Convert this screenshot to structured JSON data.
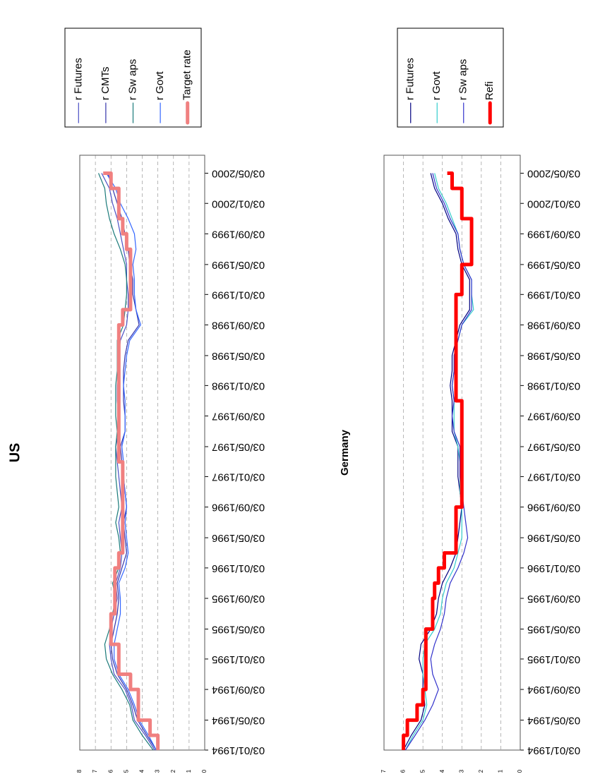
{
  "chart_data": [
    {
      "type": "line",
      "title": "US",
      "x": [
        "03/01/1994",
        "03/03/1994",
        "03/05/1994",
        "03/07/1994",
        "03/09/1994",
        "03/11/1994",
        "03/01/1995",
        "03/03/1995",
        "03/05/1995",
        "03/07/1995",
        "03/09/1995",
        "03/11/1995",
        "03/01/1996",
        "03/03/1996",
        "03/05/1996",
        "03/07/1996",
        "03/09/1996",
        "03/11/1996",
        "03/01/1997",
        "03/03/1997",
        "03/05/1997",
        "03/07/1997",
        "03/09/1997",
        "03/11/1997",
        "03/01/1998",
        "03/03/1998",
        "03/05/1998",
        "03/07/1998",
        "03/09/1998",
        "03/11/1998",
        "03/01/1999",
        "03/03/1999",
        "03/05/1999",
        "03/07/1999",
        "03/09/1999",
        "03/11/1999",
        "03/01/2000",
        "03/03/2000",
        "03/05/2000"
      ],
      "xlim": [
        "03/01/1994",
        "14/07/2000"
      ],
      "xticks": [
        "03/01/1994",
        "03/05/1994",
        "03/09/1994",
        "03/01/1995",
        "03/05/1995",
        "03/09/1995",
        "03/01/1996",
        "03/05/1996",
        "03/09/1996",
        "03/01/1997",
        "03/05/1997",
        "03/09/1997",
        "03/01/1998",
        "03/05/1998",
        "03/09/1998",
        "03/01/1999",
        "03/05/1999",
        "03/09/1999",
        "03/01/2000",
        "03/05/2000"
      ],
      "ylim": [
        0,
        8
      ],
      "yticks": [
        0,
        1,
        2,
        3,
        4,
        5,
        6,
        7,
        8
      ],
      "grid": true,
      "series": [
        {
          "name": "r Futures",
          "color": "#4a4fc4",
          "linewidth": 1.2,
          "values": [
            3.2,
            3.8,
            4.5,
            4.7,
            5.1,
            5.8,
            6.0,
            6.1,
            6.0,
            5.8,
            5.6,
            5.7,
            5.4,
            5.3,
            5.4,
            5.5,
            5.3,
            5.4,
            5.5,
            5.6,
            5.7,
            5.5,
            5.5,
            5.6,
            5.6,
            5.5,
            5.5,
            5.4,
            5.0,
            4.9,
            4.9,
            5.0,
            5.0,
            5.2,
            5.4,
            5.6,
            5.9,
            6.1,
            6.6
          ]
        },
        {
          "name": "r CMTs",
          "color": "#3333aa",
          "linewidth": 1.2,
          "values": [
            3.1,
            3.7,
            4.3,
            4.6,
            5.0,
            5.6,
            5.9,
            6.0,
            5.8,
            5.6,
            5.5,
            5.6,
            5.3,
            5.0,
            5.1,
            5.2,
            5.0,
            5.1,
            5.2,
            5.3,
            5.4,
            5.1,
            5.1,
            5.2,
            5.2,
            5.2,
            5.1,
            4.9,
            4.2,
            4.4,
            4.6,
            4.6,
            4.8,
            4.9,
            5.1,
            5.3,
            5.6,
            5.9,
            6.2
          ]
        },
        {
          "name": "r Sw aps",
          "color": "#1a7a7a",
          "linewidth": 1.2,
          "values": [
            3.3,
            4.0,
            4.6,
            4.8,
            5.3,
            5.9,
            6.3,
            6.4,
            6.1,
            5.9,
            5.7,
            5.9,
            5.5,
            5.4,
            5.5,
            5.7,
            5.5,
            5.6,
            5.7,
            5.7,
            5.7,
            5.6,
            5.7,
            5.7,
            5.7,
            5.6,
            5.6,
            5.6,
            5.2,
            5.1,
            5.0,
            5.0,
            5.1,
            5.4,
            5.8,
            6.1,
            6.3,
            6.4,
            6.8
          ]
        },
        {
          "name": "r Govt",
          "color": "#3366ff",
          "linewidth": 1.2,
          "values": [
            3.1,
            3.6,
            4.2,
            4.5,
            4.9,
            5.5,
            5.8,
            5.8,
            5.6,
            5.4,
            5.4,
            5.5,
            5.1,
            4.9,
            5.0,
            5.1,
            5.0,
            5.1,
            5.2,
            5.2,
            5.3,
            5.1,
            5.1,
            5.1,
            5.2,
            5.1,
            5.0,
            4.8,
            4.1,
            4.4,
            4.5,
            4.5,
            4.6,
            4.4,
            4.5,
            4.9,
            5.4,
            5.7,
            6.3
          ]
        },
        {
          "name": "Target rate",
          "color": "#f08080",
          "linewidth": 5,
          "step": true,
          "values": [
            3.0,
            3.5,
            4.25,
            4.25,
            4.75,
            5.5,
            5.5,
            6.0,
            6.0,
            5.75,
            5.75,
            5.75,
            5.5,
            5.25,
            5.25,
            5.25,
            5.25,
            5.25,
            5.25,
            5.5,
            5.5,
            5.5,
            5.5,
            5.5,
            5.5,
            5.5,
            5.5,
            5.5,
            5.25,
            4.75,
            4.75,
            4.75,
            4.75,
            5.0,
            5.25,
            5.5,
            5.5,
            6.0,
            6.5
          ]
        }
      ]
    },
    {
      "type": "line",
      "title": "Germany",
      "x": [
        "03/01/1994",
        "03/03/1994",
        "03/05/1994",
        "03/07/1994",
        "03/09/1994",
        "03/11/1994",
        "03/01/1995",
        "03/03/1995",
        "03/05/1995",
        "03/07/1995",
        "03/09/1995",
        "03/11/1995",
        "03/01/1996",
        "03/03/1996",
        "03/05/1996",
        "03/07/1996",
        "03/09/1996",
        "03/11/1996",
        "03/01/1997",
        "03/03/1997",
        "03/05/1997",
        "03/07/1997",
        "03/09/1997",
        "03/11/1997",
        "03/01/1998",
        "03/03/1998",
        "03/05/1998",
        "03/07/1998",
        "03/09/1998",
        "03/11/1998",
        "03/01/1999",
        "03/03/1999",
        "03/05/1999",
        "03/07/1999",
        "03/09/1999",
        "03/11/1999",
        "03/01/2000",
        "03/03/2000",
        "03/05/2000"
      ],
      "xlim": [
        "03/01/1994",
        "14/07/2000"
      ],
      "xticks": [
        "03/01/1994",
        "03/05/1994",
        "03/09/1994",
        "03/01/1995",
        "03/05/1995",
        "03/09/1995",
        "03/01/1996",
        "03/05/1996",
        "03/09/1996",
        "03/01/1997",
        "03/05/1997",
        "03/09/1997",
        "03/01/1998",
        "03/05/1998",
        "03/09/1998",
        "03/01/1999",
        "03/05/1999",
        "03/09/1999",
        "03/01/2000",
        "03/05/2000"
      ],
      "ylim": [
        0,
        7
      ],
      "yticks": [
        0,
        1,
        2,
        3,
        4,
        5,
        6,
        7
      ],
      "grid": true,
      "series": [
        {
          "name": "r Futures",
          "color": "#000080",
          "linewidth": 1.2,
          "values": [
            6.0,
            5.6,
            5.1,
            4.9,
            5.0,
            5.0,
            5.2,
            5.1,
            4.6,
            4.3,
            4.2,
            4.0,
            3.6,
            3.3,
            3.2,
            3.1,
            3.0,
            3.1,
            3.2,
            3.2,
            3.2,
            3.5,
            3.5,
            3.5,
            3.6,
            3.5,
            3.5,
            3.3,
            3.1,
            2.6,
            2.6,
            2.6,
            3.0,
            3.2,
            3.3,
            3.7,
            4.0,
            4.4,
            4.6
          ]
        },
        {
          "name": "r Govt",
          "color": "#33cccc",
          "linewidth": 1.2,
          "values": [
            5.9,
            5.5,
            5.0,
            4.8,
            4.9,
            5.0,
            5.0,
            4.9,
            4.4,
            4.1,
            4.0,
            3.8,
            3.4,
            3.2,
            3.0,
            3.0,
            3.0,
            3.1,
            3.1,
            3.1,
            3.2,
            3.4,
            3.4,
            3.4,
            3.5,
            3.4,
            3.4,
            3.2,
            3.0,
            2.4,
            2.5,
            2.5,
            2.9,
            3.1,
            3.2,
            3.5,
            3.8,
            4.2,
            4.4
          ]
        },
        {
          "name": "r Sw aps",
          "color": "#3333cc",
          "linewidth": 1.2,
          "values": [
            5.9,
            5.4,
            4.9,
            4.5,
            4.2,
            4.5,
            4.6,
            4.4,
            4.1,
            3.9,
            3.8,
            3.6,
            3.2,
            2.9,
            2.7,
            2.8,
            2.9,
            3.0,
            3.1,
            3.1,
            3.1,
            3.4,
            3.5,
            3.4,
            3.5,
            3.4,
            3.4,
            3.2,
            3.0,
            2.5,
            2.5,
            2.5,
            2.9,
            3.1,
            3.2,
            3.6,
            3.9,
            4.3,
            4.5
          ]
        },
        {
          "name": "Refi",
          "color": "#ff0000",
          "linewidth": 5,
          "step": true,
          "values": [
            6.0,
            5.8,
            5.3,
            5.0,
            4.85,
            4.85,
            4.85,
            4.85,
            4.5,
            4.5,
            4.4,
            4.2,
            3.9,
            3.3,
            3.3,
            3.3,
            3.0,
            3.0,
            3.0,
            3.0,
            3.0,
            3.0,
            3.0,
            3.3,
            3.3,
            3.3,
            3.3,
            3.3,
            3.3,
            3.3,
            3.0,
            3.0,
            2.5,
            2.5,
            2.5,
            3.0,
            3.0,
            3.5,
            3.75
          ]
        }
      ]
    }
  ]
}
